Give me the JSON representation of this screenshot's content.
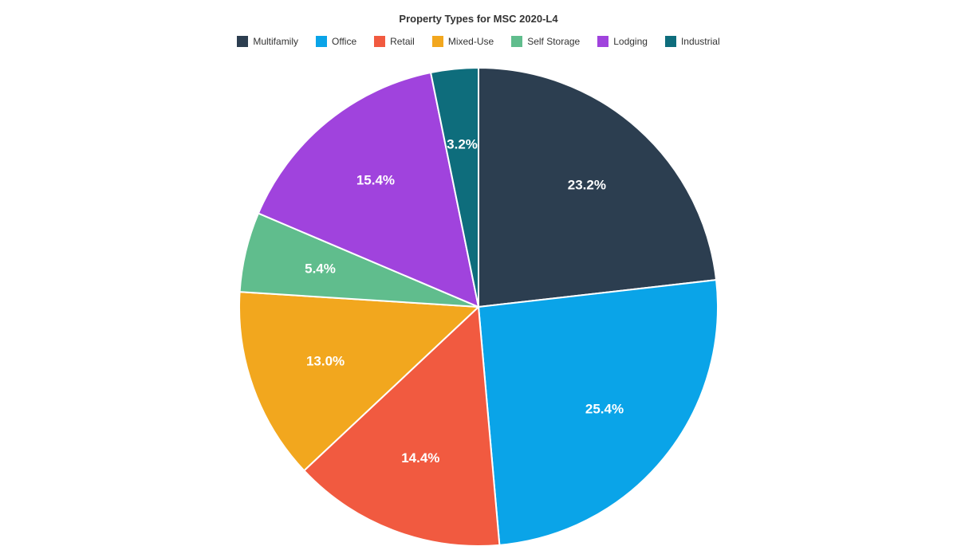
{
  "chart": {
    "type": "pie",
    "title": "Property Types for MSC 2020-L4",
    "title_fontsize": 13,
    "title_color": "#333333",
    "background_color": "#ffffff",
    "radius": 300,
    "stroke_color": "#ffffff",
    "stroke_width": 2,
    "label_fontsize": 17,
    "label_color": "#ffffff",
    "label_radius_factor": 0.68,
    "legend_fontsize": 12,
    "slices": [
      {
        "label": "Multifamily",
        "value": 23.2,
        "color": "#2c3e50",
        "display": "23.2%"
      },
      {
        "label": "Office",
        "value": 25.4,
        "color": "#0aa4e8",
        "display": "25.4%"
      },
      {
        "label": "Retail",
        "value": 14.4,
        "color": "#f15a40",
        "display": "14.4%"
      },
      {
        "label": "Mixed-Use",
        "value": 13.0,
        "color": "#f2a71e",
        "display": "13.0%"
      },
      {
        "label": "Self Storage",
        "value": 5.4,
        "color": "#60bd8d",
        "display": "5.4%"
      },
      {
        "label": "Lodging",
        "value": 15.4,
        "color": "#a043dd",
        "display": "15.4%"
      },
      {
        "label": "Industrial",
        "value": 3.2,
        "color": "#0e6d7c",
        "display": "3.2%"
      }
    ]
  }
}
